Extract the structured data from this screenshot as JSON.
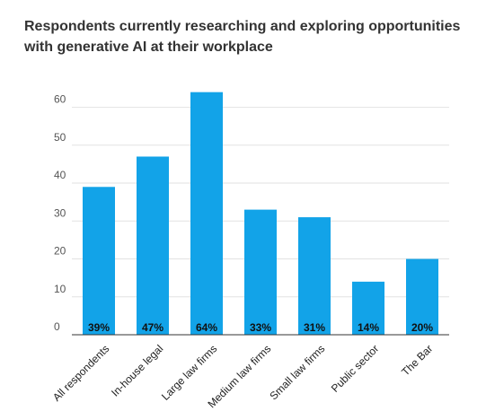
{
  "chart_data": {
    "type": "bar",
    "title": "Respondents currently researching and exploring opportunities with generative AI at their workplace",
    "xlabel": "",
    "ylabel": "",
    "ylim": [
      0,
      67
    ],
    "yticks": [
      0,
      10,
      20,
      30,
      40,
      50,
      60
    ],
    "grid": true,
    "categories": [
      "All respondents",
      "In-house legal",
      "Large law firms",
      "Medium law firms",
      "Small law firms",
      "Public sector",
      "The Bar"
    ],
    "values": [
      39,
      47,
      64,
      33,
      31,
      14,
      20
    ],
    "data_labels": [
      "39%",
      "47%",
      "64%",
      "33%",
      "31%",
      "14%",
      "20%"
    ],
    "bar_color": "#12a3e8"
  }
}
